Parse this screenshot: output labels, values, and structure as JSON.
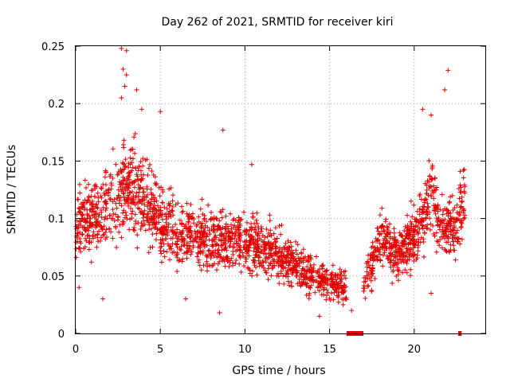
{
  "chart_data": {
    "type": "scatter",
    "title": "Day 262 of 2021, SRMTID for receiver kiri",
    "xlabel": "GPS time / hours",
    "ylabel": "SRMTID / TECUs",
    "xlim": [
      0,
      24.2
    ],
    "ylim": [
      0,
      0.25
    ],
    "x_ticks": [
      0,
      5,
      10,
      15,
      20
    ],
    "y_ticks": [
      0,
      0.05,
      0.1,
      0.15,
      0.2,
      0.25
    ],
    "x_tick_labels": [
      "0",
      "5",
      "10",
      "15",
      "20"
    ],
    "y_tick_labels": [
      "0",
      "0.05",
      "0.1",
      "0.15",
      "0.2",
      "0.25"
    ],
    "grid": true,
    "marker": "+",
    "color": "#e00000",
    "trend": [
      {
        "x": 0.0,
        "y": 0.095
      },
      {
        "x": 1.0,
        "y": 0.1
      },
      {
        "x": 2.0,
        "y": 0.11
      },
      {
        "x": 2.8,
        "y": 0.128
      },
      {
        "x": 3.5,
        "y": 0.125
      },
      {
        "x": 4.0,
        "y": 0.12
      },
      {
        "x": 5.0,
        "y": 0.1
      },
      {
        "x": 6.0,
        "y": 0.085
      },
      {
        "x": 7.0,
        "y": 0.085
      },
      {
        "x": 8.0,
        "y": 0.083
      },
      {
        "x": 9.0,
        "y": 0.08
      },
      {
        "x": 10.0,
        "y": 0.078
      },
      {
        "x": 11.0,
        "y": 0.075
      },
      {
        "x": 12.0,
        "y": 0.068
      },
      {
        "x": 13.0,
        "y": 0.058
      },
      {
        "x": 14.0,
        "y": 0.05
      },
      {
        "x": 15.0,
        "y": 0.045
      },
      {
        "x": 16.0,
        "y": 0.04
      },
      {
        "x": 16.1,
        "y": null
      },
      {
        "x": 17.0,
        "y": 0.045
      },
      {
        "x": 17.5,
        "y": 0.06
      },
      {
        "x": 18.0,
        "y": 0.085
      },
      {
        "x": 18.5,
        "y": 0.075
      },
      {
        "x": 19.0,
        "y": 0.065
      },
      {
        "x": 20.0,
        "y": 0.085
      },
      {
        "x": 21.0,
        "y": 0.12
      },
      {
        "x": 21.5,
        "y": 0.095
      },
      {
        "x": 22.0,
        "y": 0.09
      },
      {
        "x": 22.6,
        "y": 0.1
      },
      {
        "x": 23.0,
        "y": 0.12
      }
    ],
    "outliers": [
      {
        "x": 2.7,
        "y": 0.248
      },
      {
        "x": 3.0,
        "y": 0.246
      },
      {
        "x": 2.8,
        "y": 0.23
      },
      {
        "x": 3.0,
        "y": 0.225
      },
      {
        "x": 2.9,
        "y": 0.215
      },
      {
        "x": 3.6,
        "y": 0.212
      },
      {
        "x": 2.7,
        "y": 0.205
      },
      {
        "x": 3.9,
        "y": 0.195
      },
      {
        "x": 5.0,
        "y": 0.193
      },
      {
        "x": 22.0,
        "y": 0.229
      },
      {
        "x": 21.8,
        "y": 0.212
      },
      {
        "x": 20.5,
        "y": 0.195
      },
      {
        "x": 21.0,
        "y": 0.19
      },
      {
        "x": 8.7,
        "y": 0.177
      },
      {
        "x": 10.4,
        "y": 0.147
      },
      {
        "x": 0.2,
        "y": 0.04
      },
      {
        "x": 1.6,
        "y": 0.03
      },
      {
        "x": 6.5,
        "y": 0.03
      },
      {
        "x": 8.5,
        "y": 0.018
      },
      {
        "x": 14.4,
        "y": 0.015
      },
      {
        "x": 16.3,
        "y": 0.02
      },
      {
        "x": 21.0,
        "y": 0.035
      }
    ],
    "bottom_markers": [
      {
        "x_start": 16.0,
        "x_end": 17.0
      },
      {
        "x_start": 22.6,
        "x_end": 22.8
      }
    ]
  }
}
